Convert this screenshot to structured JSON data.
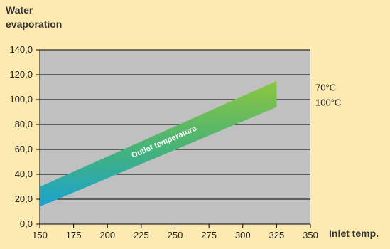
{
  "chart_data": {
    "type": "area",
    "ylabel_lines": [
      "Water",
      "evaporation"
    ],
    "xlabel": "Inlet temp.",
    "xlim": [
      150,
      350
    ],
    "ylim": [
      0,
      140
    ],
    "x_ticks": [
      "150",
      "175",
      "200",
      "225",
      "250",
      "275",
      "300",
      "325",
      "350"
    ],
    "y_ticks": [
      "0,0",
      "20,0",
      "40,0",
      "60,0",
      "80,0",
      "100,0",
      "120,0",
      "140,0"
    ],
    "grid": true,
    "band": {
      "label": "Outlet temperature",
      "x": [
        150,
        325
      ],
      "upper": [
        30,
        115
      ],
      "lower": [
        14,
        94
      ]
    },
    "series": [
      {
        "name": "70°C",
        "x": [
          150,
          325
        ],
        "values": [
          30,
          115
        ],
        "color": "#8dc63f"
      },
      {
        "name": "100°C",
        "x": [
          150,
          325
        ],
        "values": [
          14,
          94
        ],
        "color": "#1aa3d1"
      }
    ],
    "colors": {
      "background": "#fdeab0",
      "plot_area": "#c0c0c0",
      "band_top": "#8dc63f",
      "band_bottom": "#1aa3d1"
    }
  }
}
